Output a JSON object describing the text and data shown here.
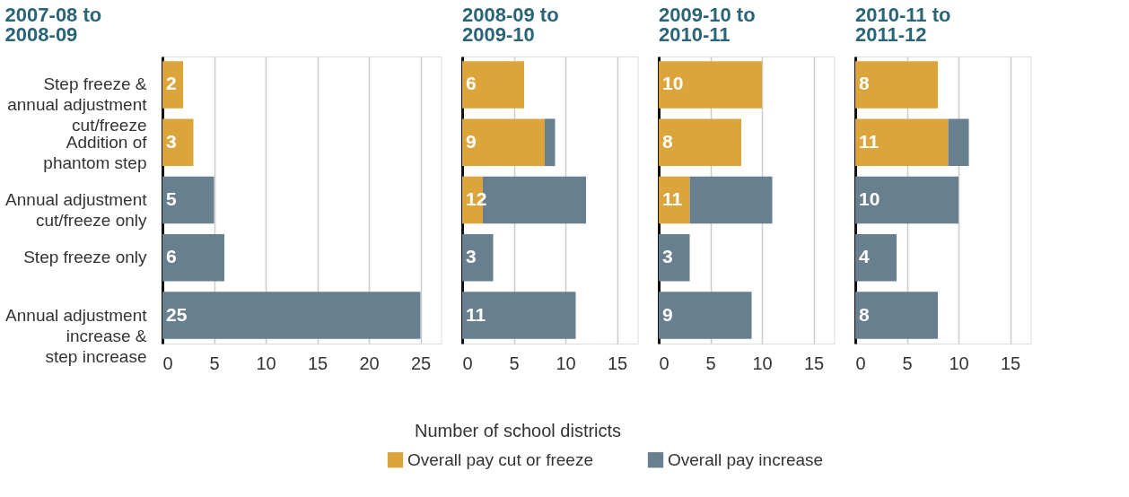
{
  "chart_data": [
    {
      "type": "bar",
      "orientation": "horizontal",
      "stacked": true,
      "title": "2007-08 to\n2008-09",
      "xlabel": "Number of school districts",
      "categories": [
        "Step freeze &\nannual adjustment\ncut/freeze",
        "Addition of\nphantom step",
        "Annual adjustment\ncut/freeze only",
        "Step freeze only",
        "Annual adjustment\nincrease &\nstep increase"
      ],
      "series": [
        {
          "name": "Overall pay cut or freeze",
          "color": "#dba53c",
          "values": [
            2,
            3,
            null,
            null,
            null
          ]
        },
        {
          "name": "Overall pay increase",
          "color": "#677f8f",
          "values": [
            null,
            null,
            5,
            6,
            25
          ]
        }
      ],
      "totals": [
        "2",
        "3",
        "5",
        "6",
        "25"
      ],
      "xlim": [
        0,
        27
      ],
      "xticks": [
        0,
        5,
        10,
        15,
        20,
        25
      ],
      "grid": "x",
      "legend": "bottom"
    },
    {
      "type": "bar",
      "orientation": "horizontal",
      "stacked": true,
      "title": "2008-09 to\n2009-10",
      "categories": [
        "Step freeze &\nannual adjustment\ncut/freeze",
        "Addition of\nphantom step",
        "Annual adjustment\ncut/freeze only",
        "Step freeze only",
        "Annual adjustment\nincrease &\nstep increase"
      ],
      "series": [
        {
          "name": "Overall pay cut or freeze",
          "color": "#dba53c",
          "values": [
            6,
            8,
            2,
            null,
            null
          ]
        },
        {
          "name": "Overall pay increase",
          "color": "#677f8f",
          "values": [
            null,
            1,
            10,
            3,
            11
          ]
        }
      ],
      "totals": [
        "6",
        "9",
        "12",
        "3",
        "11"
      ],
      "xlim": [
        0,
        17
      ],
      "xticks": [
        0,
        5,
        10,
        15
      ],
      "grid": "x",
      "legend": "bottom",
      "tick_labels": "x"
    },
    {
      "type": "bar",
      "orientation": "horizontal",
      "stacked": true,
      "title": "2009-10 to\n2010-11",
      "categories": [
        "Step freeze &\nannual adjustment\ncut/freeze",
        "Addition of\nphantom step",
        "Annual adjustment\ncut/freeze only",
        "Step freeze only",
        "Annual adjustment\nincrease &\nstep increase"
      ],
      "series": [
        {
          "name": "Overall pay cut or freeze",
          "color": "#dba53c",
          "values": [
            10,
            8,
            3,
            null,
            null
          ]
        },
        {
          "name": "Overall pay increase",
          "color": "#677f8f",
          "values": [
            null,
            null,
            8,
            3,
            9
          ]
        }
      ],
      "totals": [
        "10",
        "8",
        "11",
        "3",
        "9"
      ],
      "xlim": [
        0,
        17
      ],
      "xticks": [
        0,
        5,
        10,
        15
      ],
      "grid": "x",
      "legend": "bottom",
      "tick_labels": "x"
    },
    {
      "type": "bar",
      "orientation": "horizontal",
      "stacked": true,
      "title": "2010-11 to\n2011-12",
      "categories": [
        "Step freeze &\nannual adjustment\ncut/freeze",
        "Addition of\nphantom step",
        "Annual adjustment\ncut/freeze only",
        "Step freeze only",
        "Annual adjustment\nincrease &\nstep increase"
      ],
      "series": [
        {
          "name": "Overall pay cut or freeze",
          "color": "#dba53c",
          "values": [
            8,
            9,
            null,
            null,
            null
          ]
        },
        {
          "name": "Overall pay increase",
          "color": "#677f8f",
          "values": [
            null,
            2,
            10,
            4,
            8
          ]
        }
      ],
      "totals": [
        "8",
        "11",
        "10",
        "4",
        "8"
      ],
      "xlim": [
        0,
        17
      ],
      "xticks": [
        0,
        5,
        10,
        15
      ],
      "grid": "x",
      "legend": "bottom",
      "tick_labels": "x"
    }
  ]
}
